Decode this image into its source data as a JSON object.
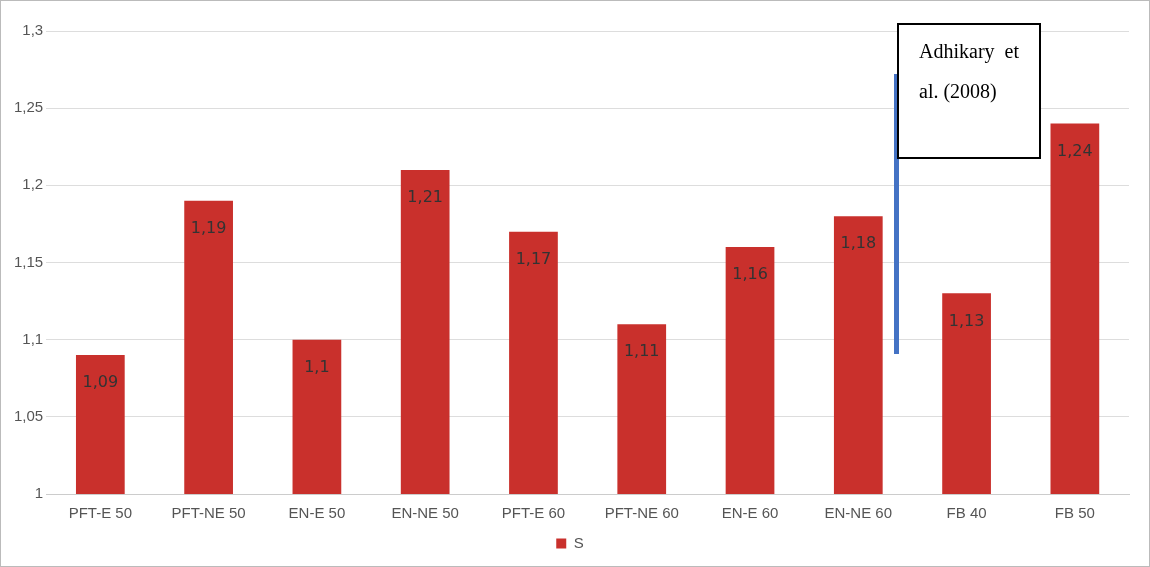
{
  "chart_data": {
    "type": "bar",
    "categories": [
      "PFT-E 50",
      "PFT-NE 50",
      "EN-E 50",
      "EN-NE 50",
      "PFT-E 60",
      "PFT-NE 60",
      "EN-E 60",
      "EN-NE 60",
      "FB 40",
      "FB 50"
    ],
    "series": [
      {
        "name": "S",
        "color": "#c9302c",
        "values": [
          1.09,
          1.19,
          1.1,
          1.21,
          1.17,
          1.11,
          1.16,
          1.18,
          1.13,
          1.24
        ],
        "value_labels": [
          "1,09",
          "1,19",
          "1,1",
          "1,21",
          "1,17",
          "1,11",
          "1,16",
          "1,18",
          "1,13",
          "1,24"
        ]
      }
    ],
    "ylim": [
      1,
      1.3
    ],
    "yticks": [
      {
        "value": 1,
        "label": "1"
      },
      {
        "value": 1.05,
        "label": "1,05"
      },
      {
        "value": 1.1,
        "label": "1,1"
      },
      {
        "value": 1.15,
        "label": "1,15"
      },
      {
        "value": 1.2,
        "label": "1,2"
      },
      {
        "value": 1.25,
        "label": "1,25"
      },
      {
        "value": 1.3,
        "label": "1,3"
      }
    ],
    "grid": "y",
    "legend": "bottom",
    "annotations": [
      "Adhikary et al. (2008)"
    ]
  }
}
